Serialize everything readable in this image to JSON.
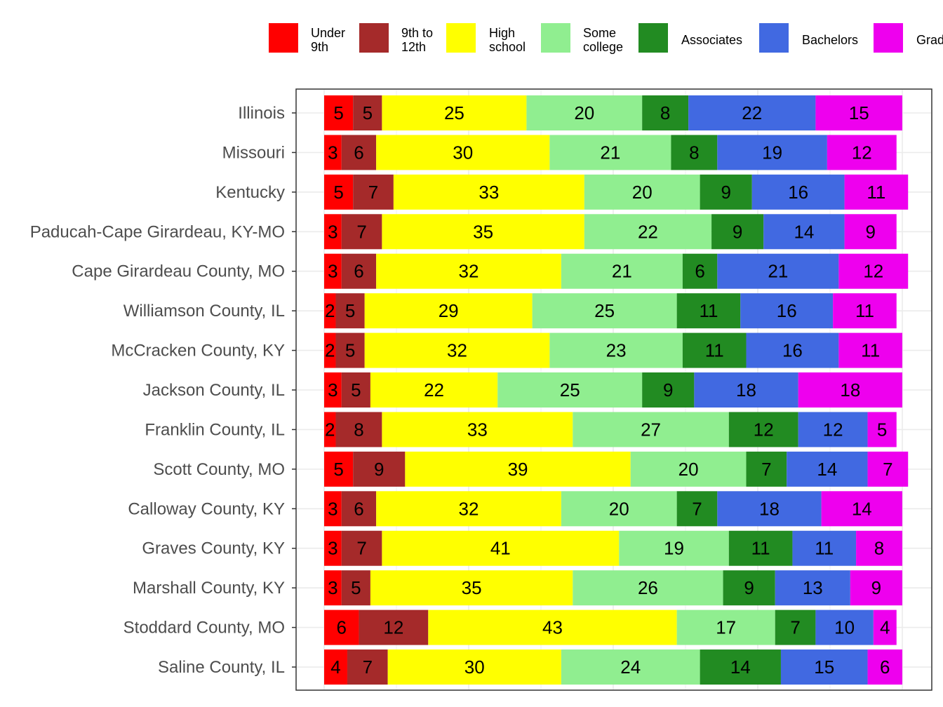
{
  "chart_data": {
    "type": "bar",
    "orientation": "horizontal",
    "stacked": true,
    "title": "",
    "xlabel": "",
    "ylabel": "",
    "xlim": [
      0,
      100
    ],
    "grid": true,
    "legend_position": "top",
    "categories": [
      "Illinois",
      "Missouri",
      "Kentucky",
      "Paducah-Cape Girardeau, KY-MO",
      "Cape Girardeau County, MO",
      "Williamson County, IL",
      "McCracken County, KY",
      "Jackson County, IL",
      "Franklin County, IL",
      "Scott County, MO",
      "Calloway County, KY",
      "Graves County, KY",
      "Marshall County, KY",
      "Stoddard County, MO",
      "Saline County, IL"
    ],
    "series": [
      {
        "name": "Under 9th",
        "legend_lines": [
          "Under",
          "9th"
        ],
        "color": "#ff0000",
        "values": [
          5,
          3,
          5,
          3,
          3,
          2,
          2,
          3,
          2,
          5,
          3,
          3,
          3,
          6,
          4
        ]
      },
      {
        "name": "9th to 12th",
        "legend_lines": [
          "9th to",
          "12th"
        ],
        "color": "#a52a2a",
        "values": [
          5,
          6,
          7,
          7,
          6,
          5,
          5,
          5,
          8,
          9,
          6,
          7,
          5,
          12,
          7
        ]
      },
      {
        "name": "High school",
        "legend_lines": [
          "High",
          "school"
        ],
        "color": "#ffff00",
        "values": [
          25,
          30,
          33,
          35,
          32,
          29,
          32,
          22,
          33,
          39,
          32,
          41,
          35,
          43,
          30
        ]
      },
      {
        "name": "Some college",
        "legend_lines": [
          "Some",
          "college"
        ],
        "color": "#90ee90",
        "values": [
          20,
          21,
          20,
          22,
          21,
          25,
          23,
          25,
          27,
          20,
          20,
          19,
          26,
          17,
          24
        ]
      },
      {
        "name": "Associates",
        "legend_lines": [
          "Associates"
        ],
        "color": "#228b22",
        "values": [
          8,
          8,
          9,
          9,
          6,
          11,
          11,
          9,
          12,
          7,
          7,
          11,
          9,
          7,
          14
        ]
      },
      {
        "name": "Bachelors",
        "legend_lines": [
          "Bachelors"
        ],
        "color": "#4169e1",
        "values": [
          22,
          19,
          16,
          14,
          21,
          16,
          16,
          18,
          12,
          14,
          18,
          11,
          13,
          10,
          15
        ]
      },
      {
        "name": "Graduate",
        "legend_lines": [
          "Grad"
        ],
        "color": "#ee00ee",
        "values": [
          15,
          12,
          11,
          9,
          12,
          11,
          11,
          18,
          5,
          7,
          14,
          8,
          9,
          4,
          6
        ]
      }
    ]
  }
}
